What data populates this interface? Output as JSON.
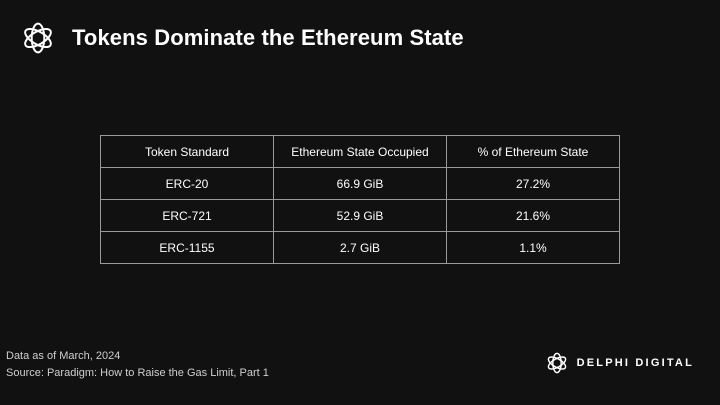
{
  "header": {
    "title": "Tokens Dominate the Ethereum State",
    "logo_icon": "delphi-flower-icon"
  },
  "chart_data": {
    "type": "table",
    "columns": [
      "Token Standard",
      "Ethereum State Occupied",
      "% of Ethereum State"
    ],
    "rows": [
      [
        "ERC-20",
        "66.9 GiB",
        "27.2%"
      ],
      [
        "ERC-721",
        "52.9 GiB",
        "21.6%"
      ],
      [
        "ERC-1155",
        "2.7 GiB",
        "1.1%"
      ]
    ]
  },
  "footer": {
    "note": "Data as of March, 2024",
    "source": "Source: Paradigm: How to Raise the Gas Limit, Part 1"
  },
  "brand": {
    "name": "DELPHI DIGITAL",
    "logo_icon": "delphi-flower-icon"
  },
  "colors": {
    "background": "#111111",
    "text": "#ffffff",
    "border": "#9a9a9a"
  }
}
